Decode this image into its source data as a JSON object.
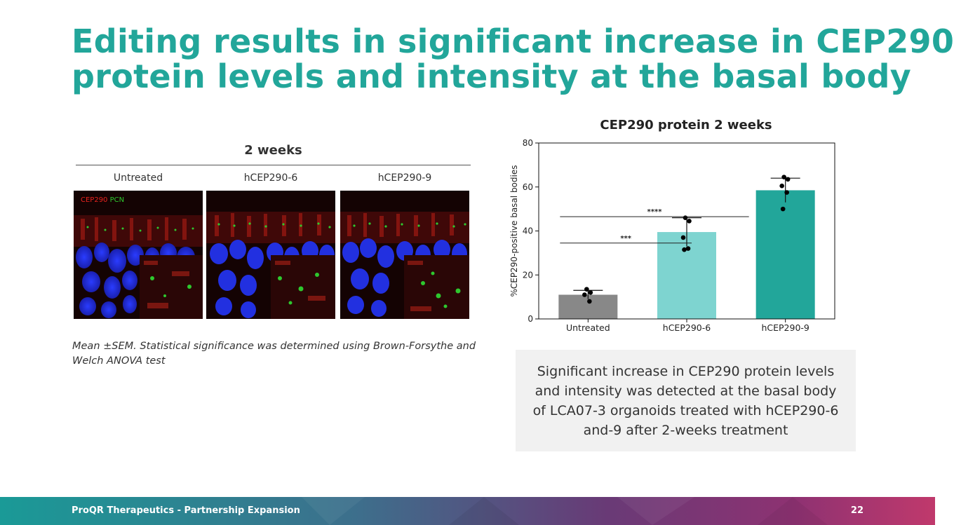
{
  "slide": {
    "title_line1": "Editing results in significant increase in CEP290",
    "title_line2": "protein levels and intensity at the basal body"
  },
  "images_panel": {
    "title": "2 weeks",
    "columns": [
      "Untreated",
      "hCEP290-6",
      "hCEP290-9"
    ],
    "stain_label_red": "CEP290",
    "stain_label_green": "PCN",
    "red_color": "#e8231e",
    "green_color": "#2ec82e"
  },
  "footnote": "Mean ±SEM. Statistical significance was determined using Brown-Forsythe and Welch ANOVA test",
  "chart_data": {
    "type": "bar",
    "title": "CEP290 protein 2 weeks",
    "categories": [
      "Untreated",
      "hCEP290-6",
      "hCEP290-9"
    ],
    "values": [
      11,
      39.5,
      58.5
    ],
    "errors": [
      2,
      6.5,
      5.5
    ],
    "colors": [
      "#888888",
      "#7ed4d0",
      "#22a69a"
    ],
    "points": [
      [
        13.5,
        12,
        11,
        8
      ],
      [
        46,
        44.5,
        37,
        32,
        31.5
      ],
      [
        64.5,
        63.5,
        60.5,
        57.5,
        50
      ]
    ],
    "xlabel": "",
    "ylabel": "%CEP290-positive basal bodies",
    "ylim": [
      0,
      80
    ],
    "yticks": [
      0,
      20,
      40,
      60,
      80
    ],
    "significance": [
      {
        "from": 0,
        "to": 1,
        "y": 34.5,
        "label": "***"
      },
      {
        "from": 0,
        "to": 2,
        "y": 46.5,
        "label": "****"
      }
    ]
  },
  "callout": "Significant increase in CEP290 protein levels and intensity was detected at the basal body of LCA07-3 organoids treated with hCEP290-6 and-9 after 2-weeks treatment",
  "footer": {
    "left": "ProQR Therapeutics - Partnership Expansion",
    "page": "22"
  }
}
